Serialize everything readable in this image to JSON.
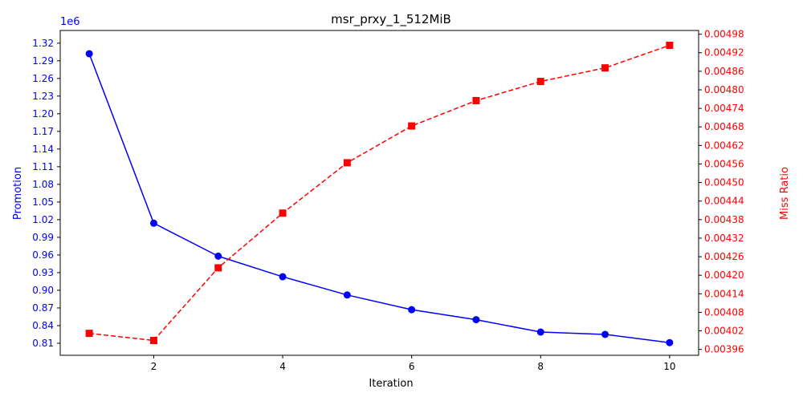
{
  "chart_data": {
    "type": "line",
    "title": "msr_prxy_1_512MiB",
    "xlabel": "Iteration",
    "x": [
      1,
      2,
      3,
      4,
      5,
      6,
      7,
      8,
      9,
      10
    ],
    "xlim": [
      0.55,
      10.45
    ],
    "x_ticks": [
      2,
      4,
      6,
      8,
      10
    ],
    "grid": false,
    "series": [
      {
        "name": "Promotion",
        "axis": "left",
        "color": "#0000ff",
        "linestyle": "solid",
        "marker": "circle",
        "values": [
          1302000,
          1014000,
          958000,
          923000,
          892000,
          867000,
          850000,
          829000,
          825000,
          811000
        ]
      },
      {
        "name": "Miss Ratio",
        "axis": "right",
        "color": "#ff0000",
        "linestyle": "dashed",
        "marker": "square",
        "values": [
          0.004012,
          0.003989,
          0.004224,
          0.004401,
          0.004564,
          0.004683,
          0.004765,
          0.004827,
          0.004871,
          0.004944
        ]
      }
    ],
    "y_left": {
      "label": "Promotion",
      "offset_text": "1e6",
      "color": "#0000ff",
      "lim": [
        0.7895,
        1.3415
      ],
      "ticks": [
        0.81,
        0.84,
        0.87,
        0.9,
        0.93,
        0.96,
        0.99,
        1.02,
        1.05,
        1.08,
        1.11,
        1.14,
        1.17,
        1.2,
        1.23,
        1.26,
        1.29,
        1.32
      ],
      "tick_labels": [
        "0.81",
        "0.84",
        "0.87",
        "0.90",
        "0.93",
        "0.96",
        "0.99",
        "1.02",
        "1.05",
        "1.08",
        "1.11",
        "1.14",
        "1.17",
        "1.20",
        "1.23",
        "1.26",
        "1.29",
        "1.32"
      ]
    },
    "y_right": {
      "label": "Miss Ratio",
      "color": "#ff0000",
      "lim": [
        0.003941,
        0.004992
      ],
      "ticks": [
        0.00396,
        0.00402,
        0.00408,
        0.00414,
        0.0042,
        0.00426,
        0.00432,
        0.00438,
        0.00444,
        0.0045,
        0.00456,
        0.00462,
        0.00468,
        0.00474,
        0.0048,
        0.00486,
        0.00492,
        0.00498
      ],
      "tick_labels": [
        "0.00396",
        "0.00402",
        "0.00408",
        "0.00414",
        "0.00420",
        "0.00426",
        "0.00432",
        "0.00438",
        "0.00444",
        "0.00450",
        "0.00456",
        "0.00462",
        "0.00468",
        "0.00474",
        "0.00480",
        "0.00486",
        "0.00492",
        "0.00498"
      ]
    }
  }
}
